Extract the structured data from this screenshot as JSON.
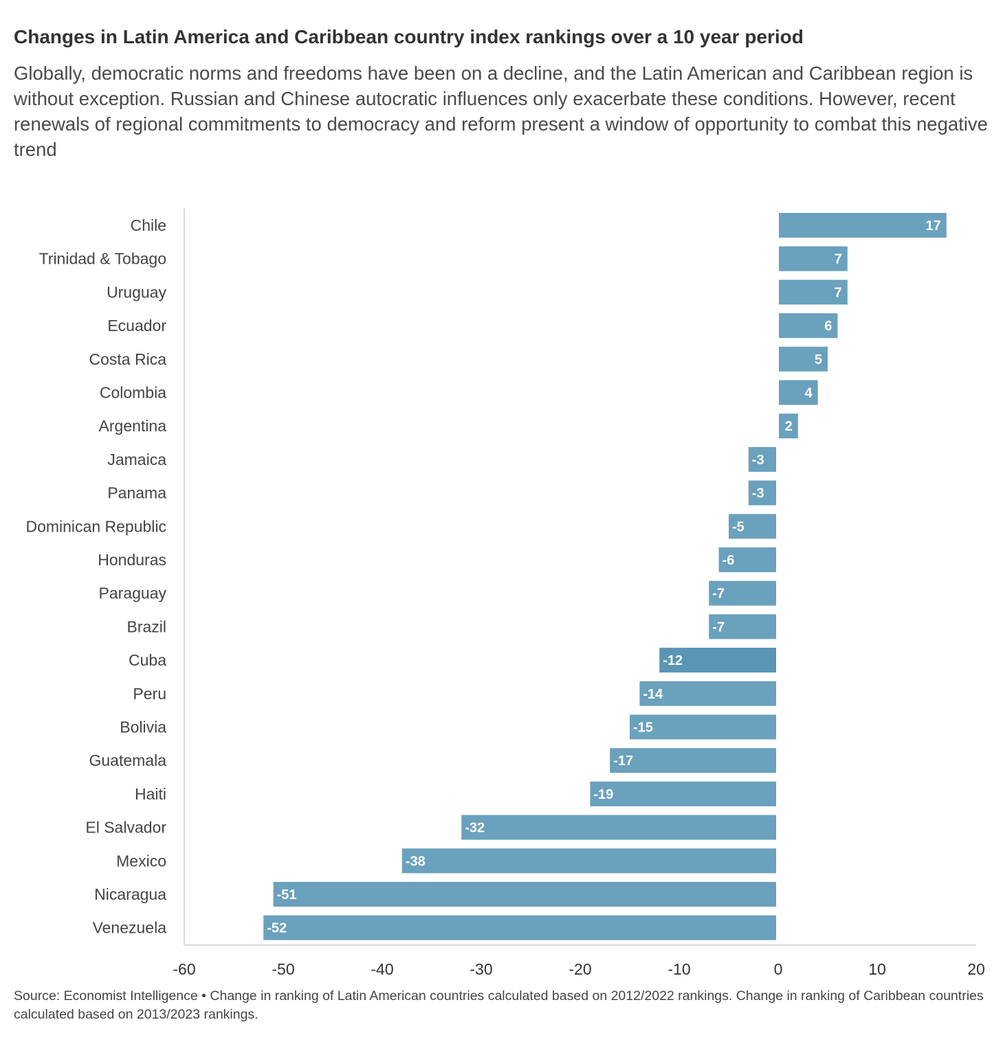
{
  "chart_data": {
    "type": "bar",
    "orientation": "horizontal",
    "title": "Changes in Latin America and Caribbean country index rankings over a 10 year period",
    "subtitle": "Globally, democratic norms and freedoms have been on a decline, and the Latin American and Caribbean region is without exception. Russian and Chinese autocratic influences only exacerbate these conditions. However, recent renewals of regional commitments to democracy and reform present a window of opportunity to combat this negative trend",
    "categories": [
      "Chile",
      "Trinidad & Tobago",
      "Uruguay",
      "Ecuador",
      "Costa Rica",
      "Colombia",
      "Argentina",
      "Jamaica",
      "Panama",
      "Dominican Republic",
      "Honduras",
      "Paraguay",
      "Brazil",
      "Cuba",
      "Peru",
      "Bolivia",
      "Guatemala",
      "Haiti",
      "El Salvador",
      "Mexico",
      "Nicaragua",
      "Venezuela"
    ],
    "values": [
      17,
      7,
      7,
      6,
      5,
      4,
      2,
      -3,
      -3,
      -5,
      -6,
      -7,
      -7,
      -12,
      -14,
      -15,
      -17,
      -19,
      -32,
      -38,
      -51,
      -52
    ],
    "highlighted": [
      "Cuba"
    ],
    "xlim": [
      -60,
      20
    ],
    "xticks": [
      -60,
      -50,
      -40,
      -30,
      -20,
      -10,
      0,
      10,
      20
    ],
    "xlabel": "",
    "ylabel": "",
    "grid": false,
    "legend": "none",
    "colors": {
      "bar": "#6aa1bd",
      "bar_highlight": "#5a95b3",
      "axis": "#cccccc",
      "label_text": "#ffffff"
    },
    "source": "Source: Economist Intelligence • Change in ranking of Latin American countries calculated based on 2012/2022 rankings. Change in ranking of Caribbean countries calculated based on 2013/2023 rankings."
  }
}
